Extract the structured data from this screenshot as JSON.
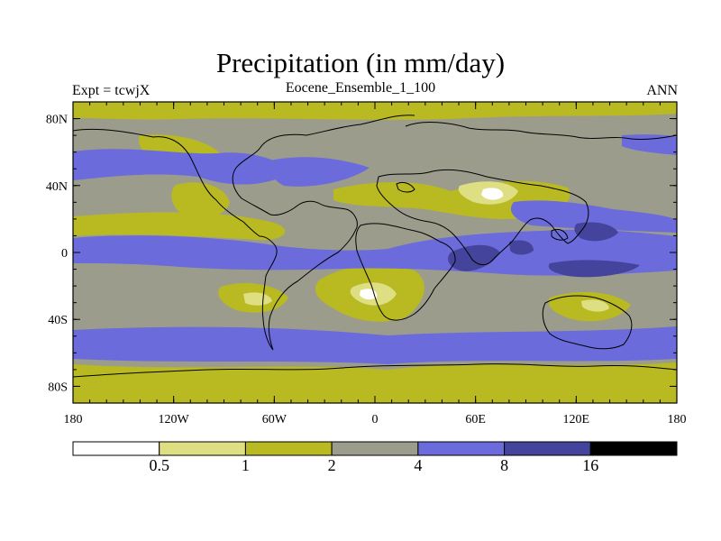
{
  "header": {
    "title": "Precipitation (in mm/day)",
    "left_label": "Expt = tcwjX",
    "center_label": "Eocene_Ensemble_1_100",
    "right_label": "ANN"
  },
  "map": {
    "lon_range": [
      -180,
      180
    ],
    "lat_range": [
      -90,
      90
    ],
    "lat_ticks": [
      {
        "value": 80,
        "label": "80N"
      },
      {
        "value": 40,
        "label": "40N"
      },
      {
        "value": 0,
        "label": "0"
      },
      {
        "value": -40,
        "label": "40S"
      },
      {
        "value": -80,
        "label": "80S"
      }
    ],
    "lon_ticks": [
      {
        "value": -180,
        "label": "180"
      },
      {
        "value": -120,
        "label": "120W"
      },
      {
        "value": -60,
        "label": "60W"
      },
      {
        "value": 0,
        "label": "0"
      },
      {
        "value": 60,
        "label": "60E"
      },
      {
        "value": 120,
        "label": "120E"
      },
      {
        "value": 180,
        "label": "180"
      }
    ]
  },
  "colorbar": {
    "colors": [
      "#ffffff",
      "#dede82",
      "#b9b922",
      "#9c9c8c",
      "#6b6bdc",
      "#44449c",
      "#000000"
    ],
    "boundary_labels": [
      "0.5",
      "1",
      "2",
      "4",
      "8",
      "16"
    ]
  }
}
